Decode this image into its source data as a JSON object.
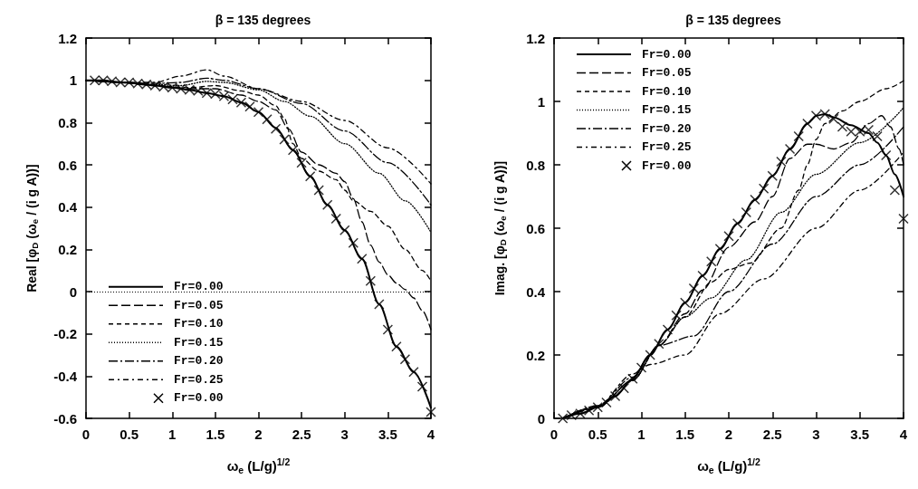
{
  "chart_data": [
    {
      "type": "line",
      "title": "β = 135 degrees",
      "xlabel": "ω$_{e}$ (L/g)$^{1/2}$",
      "ylabel": "Real [φ$_{D}$ (ω$_{e}$ / (i g A))]",
      "xlim": [
        0,
        4
      ],
      "xticks": [
        0,
        0.5,
        1,
        1.5,
        2,
        2.5,
        3,
        3.5,
        4
      ],
      "ylim": [
        -0.6,
        1.2
      ],
      "yticks": [
        -0.6,
        -0.4,
        -0.2,
        0,
        0.2,
        0.4,
        0.6,
        0.8,
        1,
        1.2
      ],
      "grid": false,
      "legend": "bottom left",
      "ref_lines": [
        {
          "axis": "y",
          "value": 0,
          "color": "#000000",
          "line_style": "dotted"
        }
      ],
      "series": [
        {
          "name": "Fr=0.00",
          "color": "#000000",
          "line_style": "solid",
          "marker": "none",
          "x": [
            0,
            0.2,
            0.4,
            0.6,
            0.8,
            1.0,
            1.2,
            1.4,
            1.6,
            1.8,
            2.0,
            2.2,
            2.4,
            2.6,
            2.8,
            3.0,
            3.2,
            3.4,
            3.6,
            3.8,
            4.0
          ],
          "values": [
            1,
            1,
            0.99,
            0.985,
            0.975,
            0.965,
            0.955,
            0.94,
            0.925,
            0.895,
            0.85,
            0.775,
            0.67,
            0.545,
            0.41,
            0.29,
            0.155,
            -0.06,
            -0.26,
            -0.38,
            -0.55
          ]
        },
        {
          "name": "Fr=0.05",
          "color": "#000000",
          "line_style": "dashed",
          "marker": "none",
          "x": [
            0,
            0.4,
            0.8,
            1.2,
            1.5,
            1.8,
            2.0,
            2.2,
            2.35,
            2.5,
            2.7,
            2.9,
            3.0,
            3.1,
            3.2,
            3.3,
            3.4,
            3.5,
            3.6,
            3.7,
            3.8,
            3.9,
            4.0
          ],
          "values": [
            1,
            0.99,
            0.975,
            0.96,
            0.96,
            0.93,
            0.9,
            0.86,
            0.77,
            0.66,
            0.6,
            0.56,
            0.52,
            0.44,
            0.33,
            0.22,
            0.14,
            0.08,
            0.04,
            0.01,
            -0.03,
            -0.09,
            -0.18
          ]
        },
        {
          "name": "Fr=0.10",
          "color": "#000000",
          "line_style": "dashed",
          "marker": "none",
          "x": [
            0,
            0.4,
            0.8,
            1.2,
            1.5,
            1.8,
            2.0,
            2.2,
            2.3,
            2.4,
            2.5,
            2.7,
            2.9,
            3.0,
            3.1,
            3.3,
            3.5,
            3.7,
            3.9,
            4.0
          ],
          "values": [
            1,
            0.99,
            0.975,
            0.965,
            0.975,
            0.95,
            0.93,
            0.88,
            0.82,
            0.7,
            0.63,
            0.57,
            0.53,
            0.48,
            0.43,
            0.38,
            0.31,
            0.2,
            0.1,
            0.05
          ]
        },
        {
          "name": "Fr=0.15",
          "color": "#000000",
          "line_style": "dotted",
          "marker": "none",
          "x": [
            0,
            0.4,
            0.8,
            1.1,
            1.4,
            1.6,
            2.0,
            2.3,
            2.6,
            3.0,
            3.4,
            3.7,
            4.0
          ],
          "values": [
            1,
            0.99,
            0.98,
            0.975,
            0.995,
            0.99,
            0.955,
            0.9,
            0.83,
            0.7,
            0.56,
            0.43,
            0.28
          ]
        },
        {
          "name": "Fr=0.20",
          "color": "#000000",
          "line_style": "dashed",
          "marker": "none",
          "x": [
            0,
            0.4,
            0.8,
            1.1,
            1.4,
            1.6,
            2.0,
            2.5,
            3.0,
            3.5,
            4.0
          ],
          "values": [
            1,
            0.99,
            0.985,
            0.99,
            1.01,
            1.0,
            0.96,
            0.89,
            0.76,
            0.61,
            0.41
          ]
        },
        {
          "name": "Fr=0.25",
          "color": "#000000",
          "line_style": "dashed",
          "marker": "none",
          "x": [
            0,
            0.4,
            0.8,
            1.1,
            1.4,
            1.6,
            2.0,
            2.5,
            3.0,
            3.5,
            4.0
          ],
          "values": [
            1,
            0.99,
            0.99,
            1.02,
            1.05,
            1.02,
            0.96,
            0.9,
            0.81,
            0.68,
            0.51
          ]
        },
        {
          "name": "Fr=0.00",
          "type": "scatter",
          "color": "#000000",
          "marker": "cross",
          "x": [
            0.1,
            0.2,
            0.3,
            0.4,
            0.5,
            0.6,
            0.7,
            0.8,
            0.9,
            1.0,
            1.1,
            1.2,
            1.3,
            1.4,
            1.5,
            1.6,
            1.7,
            1.8,
            1.9,
            2.0,
            2.1,
            2.2,
            2.3,
            2.4,
            2.5,
            2.6,
            2.7,
            2.8,
            2.9,
            3.0,
            3.1,
            3.2,
            3.3,
            3.4,
            3.5,
            3.6,
            3.7,
            3.8,
            3.9,
            4.0
          ],
          "values": [
            1.0,
            1.0,
            0.995,
            0.99,
            0.99,
            0.985,
            0.98,
            0.975,
            0.97,
            0.965,
            0.96,
            0.955,
            0.95,
            0.94,
            0.935,
            0.925,
            0.91,
            0.895,
            0.875,
            0.85,
            0.815,
            0.77,
            0.72,
            0.67,
            0.61,
            0.545,
            0.48,
            0.41,
            0.345,
            0.29,
            0.23,
            0.155,
            0.05,
            -0.06,
            -0.18,
            -0.26,
            -0.32,
            -0.38,
            -0.45,
            -0.57
          ]
        }
      ]
    },
    {
      "type": "line",
      "title": "β = 135 degrees",
      "xlabel": "ω$_{e}$ (L/g)$^{1/2}$",
      "ylabel": "Imag. [φ$_{D}$ (ω$_{e}$ / (i g A))]",
      "xlim": [
        0,
        4
      ],
      "xticks": [
        0,
        0.5,
        1,
        1.5,
        2,
        2.5,
        3,
        3.5,
        4
      ],
      "ylim": [
        0,
        1.2
      ],
      "yticks": [
        0,
        0.2,
        0.4,
        0.6,
        0.8,
        1,
        1.2
      ],
      "grid": false,
      "legend": "top left",
      "series": [
        {
          "name": "Fr=0.00",
          "color": "#000000",
          "line_style": "solid",
          "marker": "none",
          "x": [
            0.1,
            0.3,
            0.5,
            0.7,
            0.9,
            1.1,
            1.3,
            1.5,
            1.7,
            1.9,
            2.1,
            2.3,
            2.5,
            2.7,
            2.9,
            3.0,
            3.1,
            3.2,
            3.4,
            3.6,
            3.7,
            3.8,
            3.9,
            4.0
          ],
          "values": [
            0,
            0.015,
            0.035,
            0.07,
            0.125,
            0.2,
            0.28,
            0.365,
            0.45,
            0.535,
            0.615,
            0.69,
            0.765,
            0.85,
            0.93,
            0.955,
            0.96,
            0.95,
            0.925,
            0.9,
            0.87,
            0.83,
            0.77,
            0.7
          ]
        },
        {
          "name": "Fr=0.05",
          "color": "#000000",
          "line_style": "dashed",
          "marker": "none",
          "x": [
            0.1,
            0.5,
            0.9,
            1.2,
            1.5,
            1.7,
            2.0,
            2.3,
            2.5,
            2.7,
            2.9,
            3.0,
            3.2,
            3.4,
            3.6,
            3.75,
            3.85,
            3.95,
            4.0
          ],
          "values": [
            0,
            0.035,
            0.12,
            0.23,
            0.33,
            0.405,
            0.54,
            0.62,
            0.7,
            0.82,
            0.865,
            0.865,
            0.85,
            0.87,
            0.93,
            0.955,
            0.92,
            0.85,
            0.8
          ]
        },
        {
          "name": "Fr=0.10",
          "color": "#000000",
          "line_style": "dashed",
          "marker": "none",
          "x": [
            0.1,
            0.5,
            0.9,
            1.2,
            1.5,
            1.8,
            2.0,
            2.25,
            2.6,
            2.8,
            2.9,
            3.0,
            3.1,
            3.3,
            3.5,
            3.8,
            4.0
          ],
          "values": [
            0,
            0.035,
            0.12,
            0.23,
            0.32,
            0.43,
            0.47,
            0.49,
            0.6,
            0.72,
            0.8,
            0.88,
            0.93,
            0.97,
            1.0,
            1.04,
            1.065
          ]
        },
        {
          "name": "Fr=0.15",
          "color": "#000000",
          "line_style": "dotted",
          "marker": "none",
          "x": [
            0.1,
            0.5,
            0.9,
            1.2,
            1.5,
            1.8,
            2.2,
            2.6,
            3.0,
            3.5,
            4.0
          ],
          "values": [
            0,
            0.035,
            0.12,
            0.23,
            0.32,
            0.38,
            0.5,
            0.65,
            0.77,
            0.87,
            0.98
          ]
        },
        {
          "name": "Fr=0.20",
          "color": "#000000",
          "line_style": "dashed",
          "marker": "none",
          "x": [
            0.1,
            0.5,
            0.9,
            1.1,
            1.2,
            1.6,
            2.0,
            2.5,
            3.0,
            3.5,
            4.0
          ],
          "values": [
            0,
            0.04,
            0.13,
            0.2,
            0.23,
            0.26,
            0.4,
            0.55,
            0.7,
            0.8,
            0.92
          ]
        },
        {
          "name": "Fr=0.25",
          "color": "#000000",
          "line_style": "dashed",
          "marker": "none",
          "x": [
            0.1,
            0.5,
            0.9,
            1.1,
            1.5,
            1.9,
            2.4,
            3.0,
            3.5,
            4.0
          ],
          "values": [
            0,
            0.04,
            0.14,
            0.17,
            0.2,
            0.33,
            0.44,
            0.6,
            0.72,
            0.84
          ]
        },
        {
          "name": "Fr=0.00",
          "type": "scatter",
          "color": "#000000",
          "marker": "cross",
          "x": [
            0.1,
            0.2,
            0.3,
            0.4,
            0.5,
            0.6,
            0.7,
            0.8,
            0.9,
            1.0,
            1.1,
            1.2,
            1.3,
            1.4,
            1.5,
            1.6,
            1.7,
            1.8,
            1.9,
            2.0,
            2.1,
            2.2,
            2.3,
            2.4,
            2.5,
            2.6,
            2.7,
            2.8,
            2.9,
            3.0,
            3.1,
            3.2,
            3.3,
            3.4,
            3.5,
            3.6,
            3.7,
            3.8,
            3.9,
            4.0
          ],
          "values": [
            0,
            0.01,
            0.015,
            0.025,
            0.035,
            0.05,
            0.07,
            0.095,
            0.125,
            0.16,
            0.2,
            0.235,
            0.28,
            0.325,
            0.365,
            0.41,
            0.45,
            0.495,
            0.535,
            0.575,
            0.615,
            0.65,
            0.69,
            0.725,
            0.765,
            0.81,
            0.85,
            0.89,
            0.93,
            0.955,
            0.96,
            0.945,
            0.92,
            0.905,
            0.905,
            0.91,
            0.89,
            0.83,
            0.72,
            0.63
          ]
        }
      ]
    }
  ]
}
